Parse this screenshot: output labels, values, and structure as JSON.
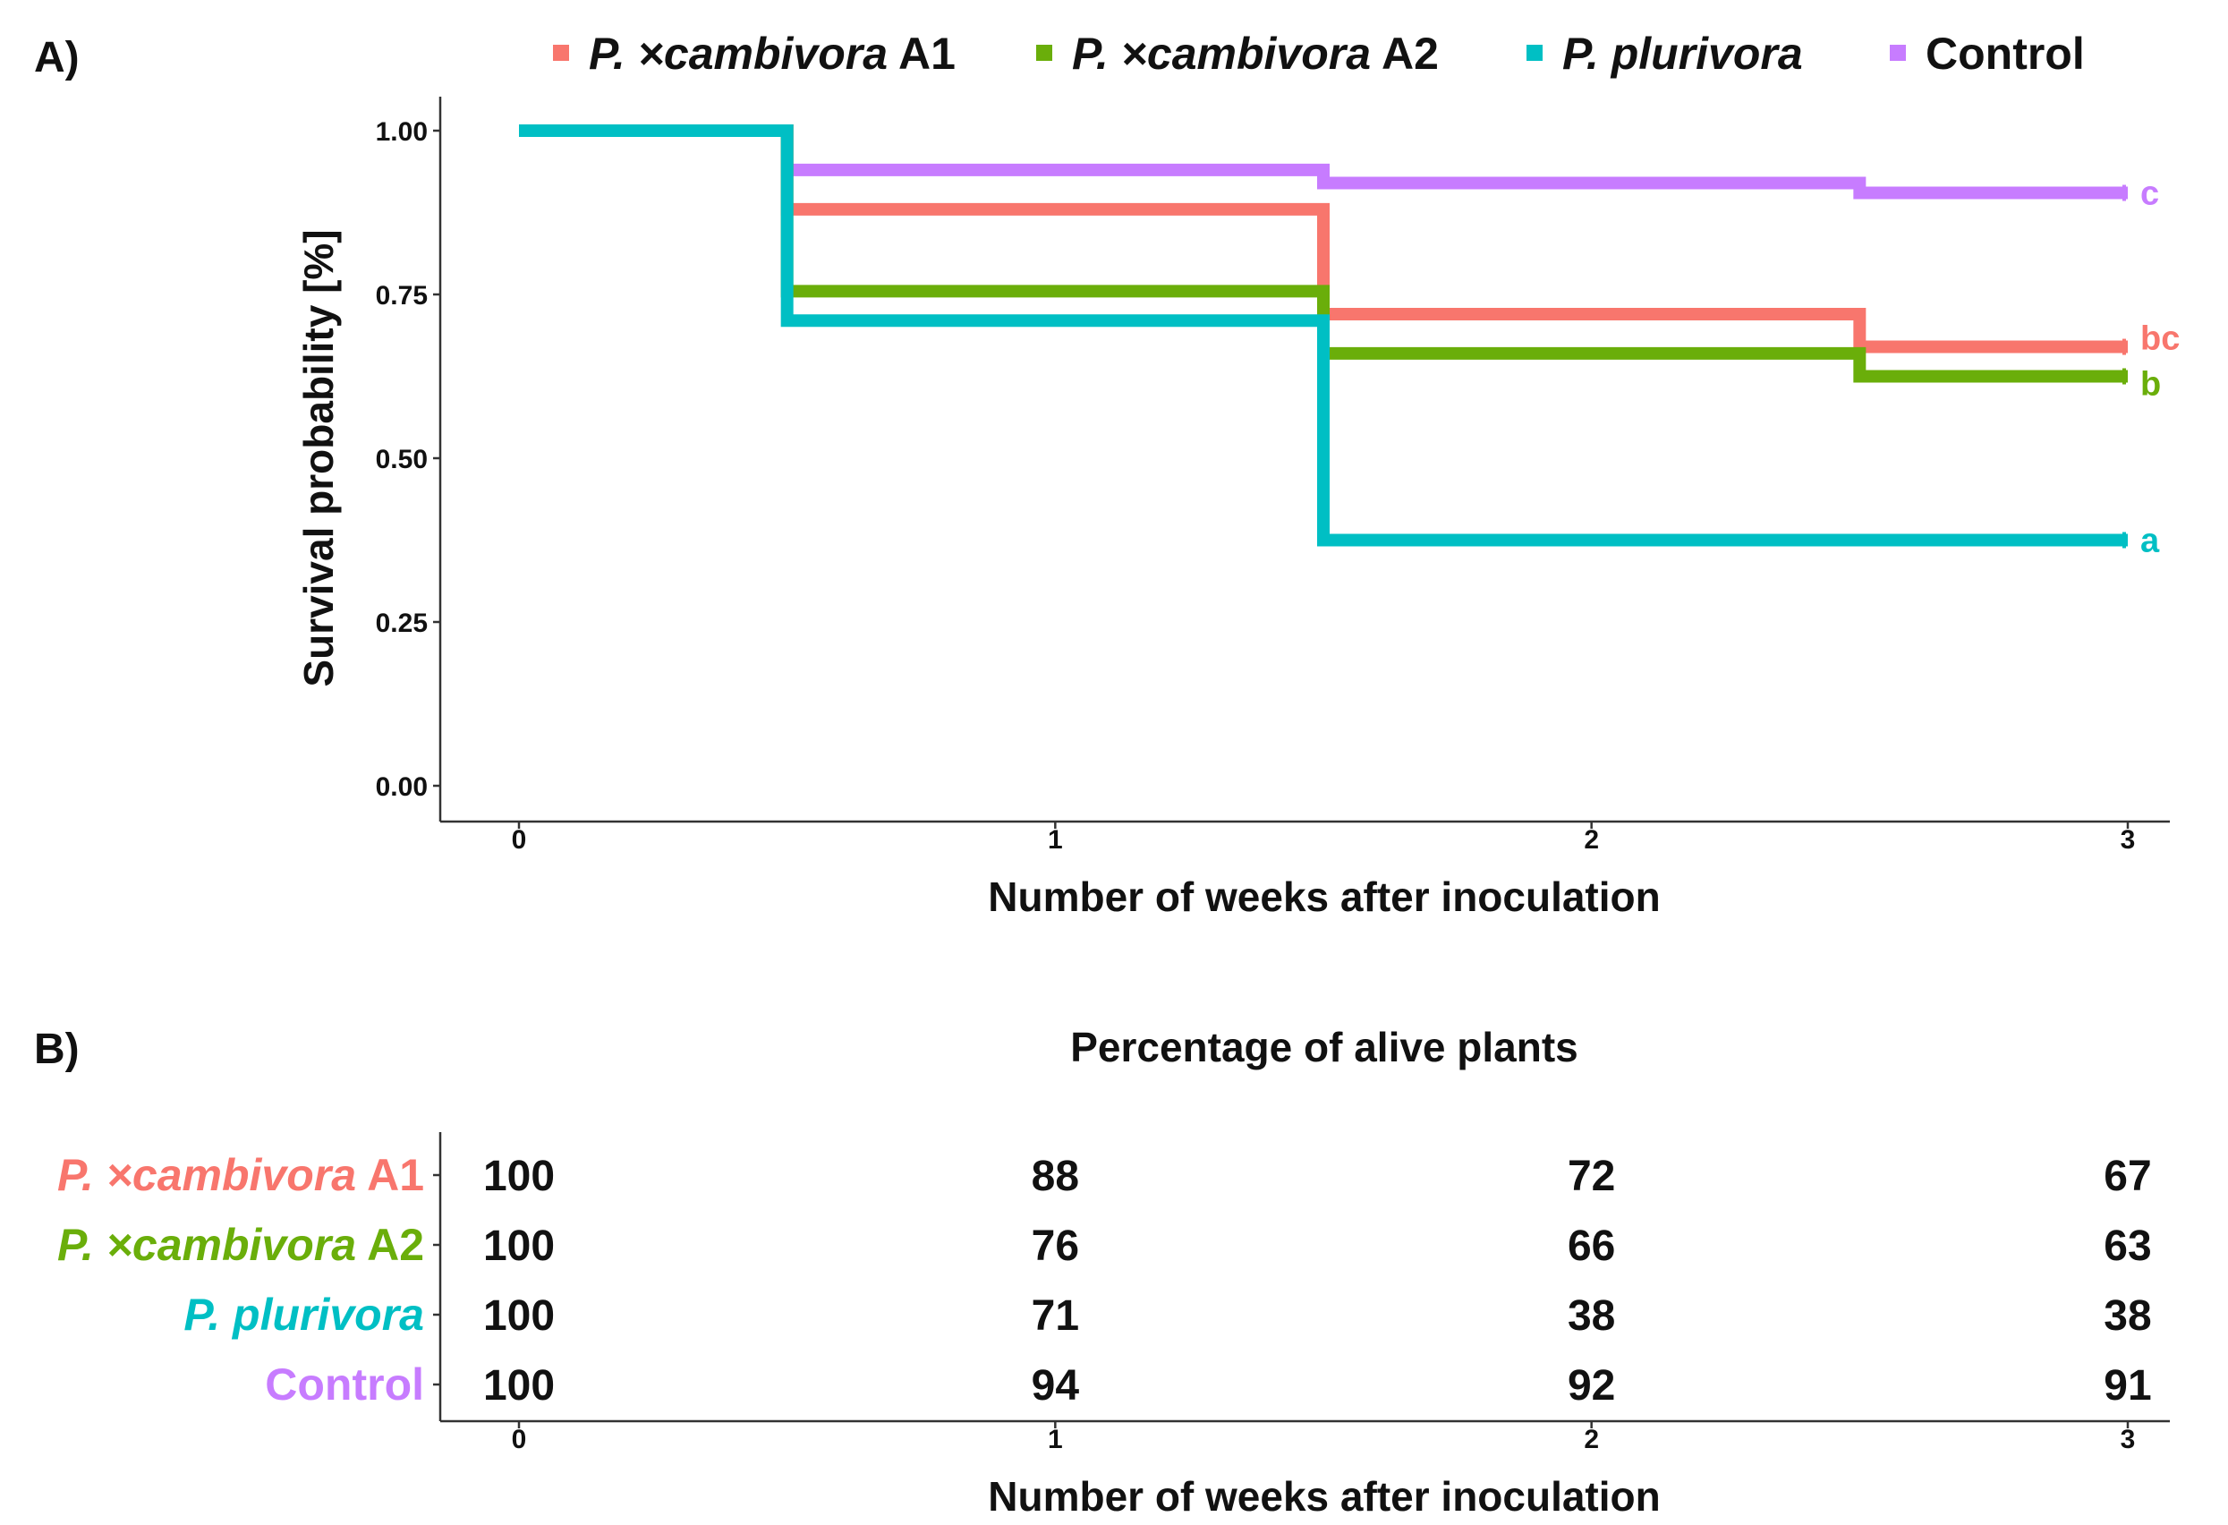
{
  "chart_data": [
    {
      "type": "line",
      "panel_label": "A)",
      "title": "",
      "xlabel": "Number of weeks after inoculation",
      "ylabel": "Survival probability [%]",
      "xlim": [
        0,
        3
      ],
      "ylim": [
        0,
        1
      ],
      "x_ticks": [
        0,
        1,
        2,
        3
      ],
      "x_tick_labels": [
        "0",
        "1",
        "2",
        "3"
      ],
      "y_ticks": [
        0,
        0.25,
        0.5,
        0.75,
        1.0
      ],
      "y_tick_labels": [
        "0.00",
        "0.25",
        "0.50",
        "0.75",
        "1.00"
      ],
      "grid": false,
      "legend_position": "top",
      "series": [
        {
          "key": "a1",
          "name_italic": "P. ×cambivora",
          "name_suffix": " A1",
          "color": "#F8766D",
          "step_x": [
            0,
            0.5,
            1.5,
            2.5,
            3
          ],
          "step_y": [
            1.0,
            0.88,
            0.72,
            0.67,
            0.67
          ],
          "letter": "bc"
        },
        {
          "key": "a2",
          "name_italic": "P. ×cambivora",
          "name_suffix": " A2",
          "color": "#6AAE0A",
          "step_x": [
            0,
            0.5,
            1.5,
            2.5,
            3
          ],
          "step_y": [
            1.0,
            0.755,
            0.66,
            0.625,
            0.625
          ],
          "letter": "b"
        },
        {
          "key": "pl",
          "name_italic": "P. plurivora",
          "name_suffix": "",
          "color": "#00BFC4",
          "step_x": [
            0,
            0.5,
            1.5,
            3
          ],
          "step_y": [
            1.0,
            0.71,
            0.375,
            0.375
          ],
          "letter": "a"
        },
        {
          "key": "ct",
          "name_italic": "",
          "name_suffix": "Control",
          "color": "#C77CFF",
          "step_x": [
            0,
            0.5,
            1.5,
            2.5,
            3
          ],
          "step_y": [
            1.0,
            0.94,
            0.92,
            0.905,
            0.905
          ],
          "letter": "c"
        }
      ]
    },
    {
      "type": "table",
      "panel_label": "B)",
      "title": "Percentage of alive plants",
      "xlabel": "Number of weeks after inoculation",
      "columns": [
        "0",
        "1",
        "2",
        "3"
      ],
      "rows": [
        {
          "name_italic": "P. ×cambivora",
          "name_suffix": " A1",
          "color": "#F8766D",
          "values": [
            "100",
            "88",
            "72",
            "67"
          ]
        },
        {
          "name_italic": "P. ×cambivora",
          "name_suffix": " A2",
          "color": "#6AAE0A",
          "values": [
            "100",
            "76",
            "66",
            "63"
          ]
        },
        {
          "name_italic": "P. plurivora",
          "name_suffix": "",
          "color": "#00BFC4",
          "values": [
            "100",
            "71",
            "38",
            "38"
          ]
        },
        {
          "name_italic": "",
          "name_suffix": "Control",
          "color": "#C77CFF",
          "values": [
            "100",
            "94",
            "92",
            "91"
          ]
        }
      ]
    }
  ]
}
